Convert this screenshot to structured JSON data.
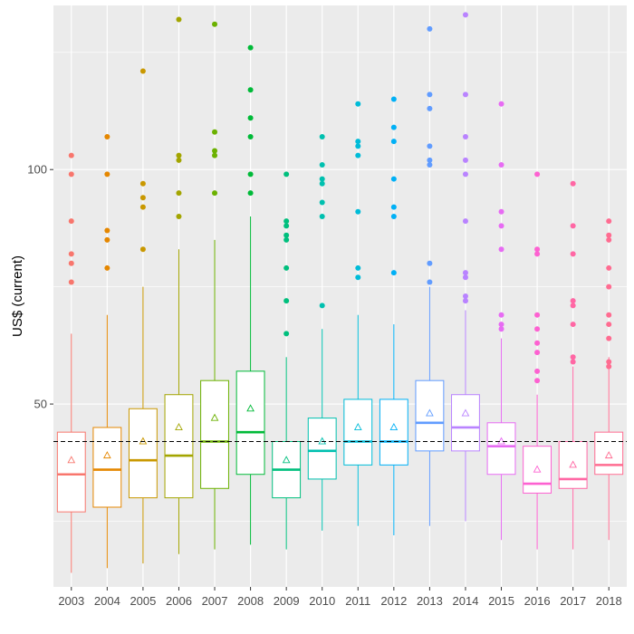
{
  "chart_data": {
    "type": "boxplot",
    "title": "",
    "xlabel": "",
    "ylabel": "US$ (current)",
    "ylim": [
      11,
      135
    ],
    "y_ticks": [
      50,
      100
    ],
    "grid": true,
    "legend": "none",
    "reference_line": {
      "value": 42,
      "style": "dashed",
      "color": "#000000"
    },
    "panel_background": "#ebebeb",
    "grid_color": "#ffffff",
    "categories": [
      "2003",
      "2004",
      "2005",
      "2006",
      "2007",
      "2008",
      "2009",
      "2010",
      "2011",
      "2012",
      "2013",
      "2014",
      "2015",
      "2016",
      "2017",
      "2018"
    ],
    "colors": [
      "#f8766d",
      "#e58700",
      "#c99800",
      "#a3a500",
      "#6bb100",
      "#00ba38",
      "#00bf7d",
      "#00c0af",
      "#00bcd8",
      "#00b0f6",
      "#619cff",
      "#b983ff",
      "#e76bf3",
      "#fd61d1",
      "#ff67a4",
      "#ff6c91"
    ],
    "boxes": [
      {
        "category": "2003",
        "whisker_low": 14,
        "q1": 27,
        "median": 35,
        "q3": 44,
        "whisker_high": 65,
        "mean": 38,
        "outliers": [
          103,
          99,
          89,
          82,
          80,
          76
        ]
      },
      {
        "category": "2004",
        "whisker_low": 15,
        "q1": 28,
        "median": 36,
        "q3": 45,
        "whisker_high": 69,
        "mean": 39,
        "outliers": [
          107,
          99,
          87,
          85,
          79
        ]
      },
      {
        "category": "2005",
        "whisker_low": 16,
        "q1": 30,
        "median": 38,
        "q3": 49,
        "whisker_high": 75,
        "mean": 42,
        "outliers": [
          121,
          97,
          94,
          92,
          83
        ]
      },
      {
        "category": "2006",
        "whisker_low": 18,
        "q1": 30,
        "median": 39,
        "q3": 52,
        "whisker_high": 83,
        "mean": 45,
        "outliers": [
          132,
          103,
          102,
          95,
          90
        ]
      },
      {
        "category": "2007",
        "whisker_low": 19,
        "q1": 32,
        "median": 42,
        "q3": 55,
        "whisker_high": 85,
        "mean": 47,
        "outliers": [
          131,
          108,
          104,
          103,
          95
        ]
      },
      {
        "category": "2008",
        "whisker_low": 20,
        "q1": 35,
        "median": 44,
        "q3": 57,
        "whisker_high": 90,
        "mean": 49,
        "outliers": [
          126,
          117,
          111,
          107,
          99,
          95
        ]
      },
      {
        "category": "2009",
        "whisker_low": 19,
        "q1": 30,
        "median": 36,
        "q3": 42,
        "whisker_high": 60,
        "mean": 38,
        "outliers": [
          99,
          89,
          88,
          86,
          85,
          79,
          72,
          65
        ]
      },
      {
        "category": "2010",
        "whisker_low": 23,
        "q1": 34,
        "median": 40,
        "q3": 47,
        "whisker_high": 66,
        "mean": 42,
        "outliers": [
          107,
          101,
          98,
          97,
          93,
          90,
          71
        ]
      },
      {
        "category": "2011",
        "whisker_low": 24,
        "q1": 37,
        "median": 42,
        "q3": 51,
        "whisker_high": 69,
        "mean": 45,
        "outliers": [
          114,
          106,
          105,
          103,
          91,
          79,
          77
        ]
      },
      {
        "category": "2012",
        "whisker_low": 22,
        "q1": 37,
        "median": 42,
        "q3": 51,
        "whisker_high": 67,
        "mean": 45,
        "outliers": [
          115,
          109,
          106,
          98,
          92,
          90,
          78
        ]
      },
      {
        "category": "2013",
        "whisker_low": 24,
        "q1": 40,
        "median": 46,
        "q3": 55,
        "whisker_high": 75,
        "mean": 48,
        "outliers": [
          130,
          116,
          113,
          105,
          102,
          101,
          80,
          76
        ]
      },
      {
        "category": "2014",
        "whisker_low": 25,
        "q1": 40,
        "median": 45,
        "q3": 52,
        "whisker_high": 70,
        "mean": 48,
        "outliers": [
          133,
          116,
          107,
          102,
          99,
          89,
          78,
          77,
          73,
          72
        ]
      },
      {
        "category": "2015",
        "whisker_low": 21,
        "q1": 35,
        "median": 41,
        "q3": 46,
        "whisker_high": 64,
        "mean": 42,
        "outliers": [
          114,
          101,
          91,
          88,
          83,
          69,
          67,
          66
        ]
      },
      {
        "category": "2016",
        "whisker_low": 19,
        "q1": 31,
        "median": 33,
        "q3": 41,
        "whisker_high": 52,
        "mean": 36,
        "outliers": [
          99,
          83,
          82,
          69,
          66,
          63,
          61,
          57,
          55
        ]
      },
      {
        "category": "2017",
        "whisker_low": 19,
        "q1": 32,
        "median": 34,
        "q3": 42,
        "whisker_high": 58,
        "mean": 37,
        "outliers": [
          97,
          88,
          82,
          72,
          71,
          67,
          60,
          59
        ]
      },
      {
        "category": "2018",
        "whisker_low": 21,
        "q1": 35,
        "median": 37,
        "q3": 44,
        "whisker_high": 60,
        "mean": 39,
        "outliers": [
          89,
          86,
          85,
          79,
          75,
          69,
          67,
          64,
          59,
          58
        ]
      }
    ]
  }
}
